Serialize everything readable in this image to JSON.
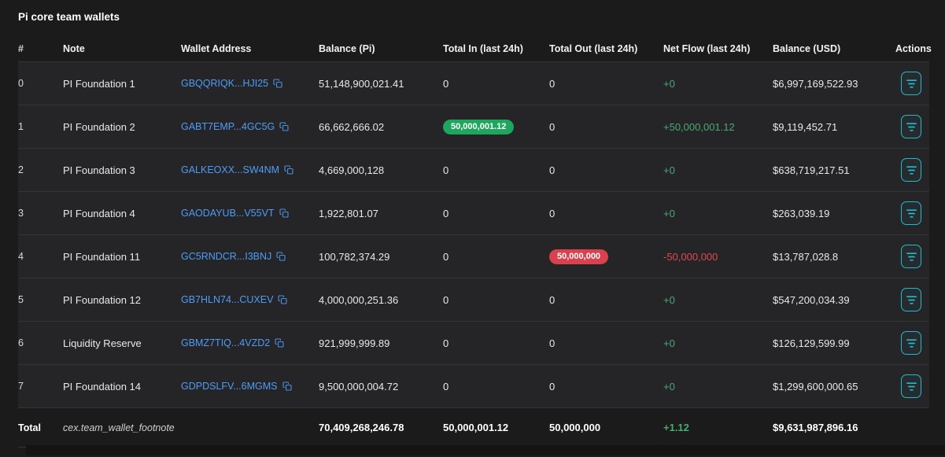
{
  "title": "Pi core team wallets",
  "colors": {
    "accent_teal": "#27b9c9",
    "link_blue": "#4f9cf7",
    "badge_green": "#1ea65e",
    "badge_red": "#d8414d",
    "text_green": "#4aa974",
    "text_red": "#df4a4e",
    "row_bg": "#252527",
    "border": "#343436"
  },
  "icons": {
    "copy": "copy-icon",
    "action": "filter-icon"
  },
  "table": {
    "columns": [
      "#",
      "Note",
      "Wallet Address",
      "Balance (Pi)",
      "Total In (last 24h)",
      "Total Out (last 24h)",
      "Net Flow (last 24h)",
      "Balance (USD)",
      "Actions"
    ],
    "rows": [
      {
        "index": "0",
        "note": "PI Foundation 1",
        "address": "GBQQRIQK...HJI25",
        "balance_pi": "51,148,900,021.41",
        "total_in": "0",
        "total_in_badge": false,
        "total_out": "0",
        "total_out_badge": false,
        "net_flow": "+0",
        "net_flow_sign": "positive",
        "balance_usd": "$6,997,169,522.93"
      },
      {
        "index": "1",
        "note": "PI Foundation 2",
        "address": "GABT7EMP...4GC5G",
        "balance_pi": "66,662,666.02",
        "total_in": "50,000,001.12",
        "total_in_badge": true,
        "total_out": "0",
        "total_out_badge": false,
        "net_flow": "+50,000,001.12",
        "net_flow_sign": "positive",
        "balance_usd": "$9,119,452.71"
      },
      {
        "index": "2",
        "note": "PI Foundation 3",
        "address": "GALKEOXX...SW4NM",
        "balance_pi": "4,669,000,128",
        "total_in": "0",
        "total_in_badge": false,
        "total_out": "0",
        "total_out_badge": false,
        "net_flow": "+0",
        "net_flow_sign": "positive",
        "balance_usd": "$638,719,217.51"
      },
      {
        "index": "3",
        "note": "PI Foundation 4",
        "address": "GAODAYUB...V55VT",
        "balance_pi": "1,922,801.07",
        "total_in": "0",
        "total_in_badge": false,
        "total_out": "0",
        "total_out_badge": false,
        "net_flow": "+0",
        "net_flow_sign": "positive",
        "balance_usd": "$263,039.19"
      },
      {
        "index": "4",
        "note": "PI Foundation 11",
        "address": "GC5RNDCR...I3BNJ",
        "balance_pi": "100,782,374.29",
        "total_in": "0",
        "total_in_badge": false,
        "total_out": "50,000,000",
        "total_out_badge": true,
        "net_flow": "-50,000,000",
        "net_flow_sign": "negative",
        "balance_usd": "$13,787,028.8"
      },
      {
        "index": "5",
        "note": "PI Foundation 12",
        "address": "GB7HLN74...CUXEV",
        "balance_pi": "4,000,000,251.36",
        "total_in": "0",
        "total_in_badge": false,
        "total_out": "0",
        "total_out_badge": false,
        "net_flow": "+0",
        "net_flow_sign": "positive",
        "balance_usd": "$547,200,034.39"
      },
      {
        "index": "6",
        "note": "Liquidity Reserve",
        "address": "GBMZ7TIQ...4VZD2",
        "balance_pi": "921,999,999.89",
        "total_in": "0",
        "total_in_badge": false,
        "total_out": "0",
        "total_out_badge": false,
        "net_flow": "+0",
        "net_flow_sign": "positive",
        "balance_usd": "$126,129,599.99"
      },
      {
        "index": "7",
        "note": "PI Foundation 14",
        "address": "GDPDSLFV...6MGMS",
        "balance_pi": "9,500,000,004.72",
        "total_in": "0",
        "total_in_badge": false,
        "total_out": "0",
        "total_out_badge": false,
        "net_flow": "+0",
        "net_flow_sign": "positive",
        "balance_usd": "$1,299,600,000.65"
      }
    ],
    "footer": {
      "label": "Total",
      "note": "cex.team_wallet_footnote",
      "balance_pi": "70,409,268,246.78",
      "total_in": "50,000,001.12",
      "total_out": "50,000,000",
      "net_flow": "+1.12",
      "net_flow_sign": "positive",
      "balance_usd": "$9,631,987,896.16"
    }
  }
}
